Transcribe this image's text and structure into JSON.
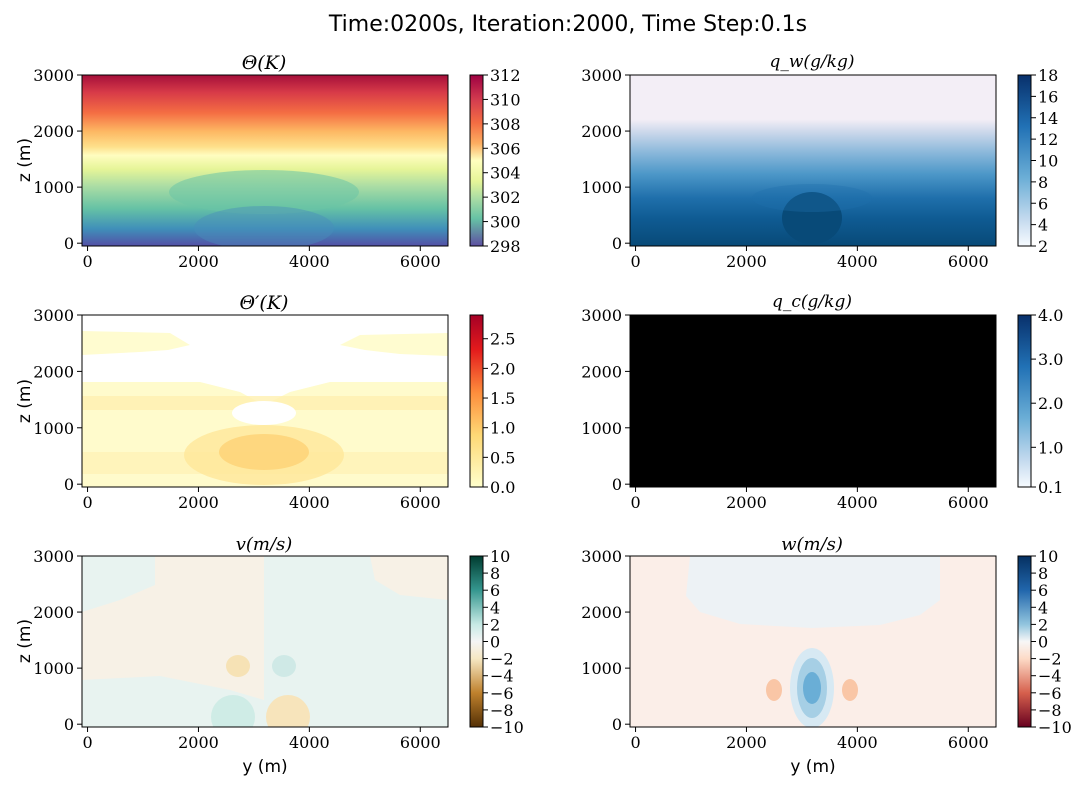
{
  "figure": {
    "suptitle": "Time:0200s, Iteration:2000, Time Step:0.1s"
  },
  "chart_data": [
    {
      "type": "heatmap",
      "title": "Θ(K)",
      "xlabel": "",
      "ylabel": "z (m)",
      "xlim": [
        0,
        6400
      ],
      "ylim": [
        0,
        3000
      ],
      "xticks": [
        "0",
        "2000",
        "4000",
        "6000"
      ],
      "yticks": [
        "0",
        "1000",
        "2000",
        "3000"
      ],
      "colorbar": {
        "ticks": [
          "298",
          "300",
          "302",
          "304",
          "306",
          "308",
          "310",
          "312"
        ],
        "range": [
          298,
          312
        ],
        "colormap": "Spectral_r"
      },
      "field": "Potential temperature stratified from 298 K at surface to 312 K at 3000 m, with cool dome near y=3200 m",
      "plot_xlim": [
        -100,
        6500
      ],
      "plot_ylim": [
        -50,
        3000
      ]
    },
    {
      "type": "heatmap",
      "title": "q_w(g/kg)",
      "xlabel": "",
      "ylabel": "",
      "xlim": [
        0,
        6400
      ],
      "ylim": [
        0,
        3000
      ],
      "xticks": [
        "0",
        "2000",
        "4000",
        "6000"
      ],
      "yticks": [
        "0",
        "1000",
        "2000",
        "3000"
      ],
      "colorbar": {
        "ticks": [
          "2",
          "4",
          "6",
          "8",
          "10",
          "12",
          "14",
          "16",
          "18"
        ],
        "range": [
          2,
          18
        ],
        "colormap": "Blues"
      },
      "field": "Water vapor mixing ratio decreasing with height, moist bulge near y=3200 m",
      "plot_xlim": [
        -100,
        6500
      ],
      "plot_ylim": [
        -50,
        3000
      ]
    },
    {
      "type": "heatmap",
      "title": "Θ′(K)",
      "xlabel": "",
      "ylabel": "z (m)",
      "xlim": [
        0,
        6400
      ],
      "ylim": [
        0,
        3000
      ],
      "xticks": [
        "0",
        "2000",
        "4000",
        "6000"
      ],
      "yticks": [
        "0",
        "1000",
        "2000",
        "3000"
      ],
      "colorbar": {
        "ticks": [
          "0.0",
          "0.5",
          "1.0",
          "1.5",
          "2.0",
          "2.5"
        ],
        "range": [
          0,
          2.9
        ],
        "colormap": "YlOrRd"
      },
      "field": "Potential temperature perturbation, small positive values with maximum near y=3200 m, z=600 m",
      "plot_xlim": [
        -100,
        6500
      ],
      "plot_ylim": [
        -50,
        3000
      ]
    },
    {
      "type": "heatmap",
      "title": "q_c(g/kg)",
      "xlabel": "",
      "ylabel": "",
      "xlim": [
        0,
        6400
      ],
      "ylim": [
        0,
        3000
      ],
      "xticks": [
        "0",
        "2000",
        "4000",
        "6000"
      ],
      "yticks": [
        "0",
        "1000",
        "2000",
        "3000"
      ],
      "colorbar": {
        "ticks": [
          "0.1",
          "1.0",
          "2.0",
          "3.0",
          "4.0"
        ],
        "range": [
          0.1,
          4.0
        ],
        "colormap": "Blues"
      },
      "field": "Cloud water mixing ratio, entire domain rendered black",
      "plot_xlim": [
        -100,
        6500
      ],
      "plot_ylim": [
        -50,
        3000
      ]
    },
    {
      "type": "heatmap",
      "title": "v(m/s)",
      "xlabel": "y (m)",
      "ylabel": "z (m)",
      "xlim": [
        0,
        6400
      ],
      "ylim": [
        0,
        3000
      ],
      "xticks": [
        "0",
        "2000",
        "4000",
        "6000"
      ],
      "yticks": [
        "0",
        "1000",
        "2000",
        "3000"
      ],
      "colorbar": {
        "ticks": [
          "10",
          "8",
          "6",
          "4",
          "2",
          "0",
          "−2",
          "−4",
          "−6",
          "−8",
          "−10"
        ],
        "range": [
          -10,
          10
        ],
        "colormap": "BrBG"
      },
      "field": "Horizontal wind, weak values near zero with small lobes around y=3200 m",
      "plot_xlim": [
        -100,
        6500
      ],
      "plot_ylim": [
        -50,
        3000
      ]
    },
    {
      "type": "heatmap",
      "title": "w(m/s)",
      "xlabel": "y (m)",
      "ylabel": "",
      "xlim": [
        0,
        6400
      ],
      "ylim": [
        0,
        3000
      ],
      "xticks": [
        "0",
        "2000",
        "4000",
        "6000"
      ],
      "yticks": [
        "0",
        "1000",
        "2000",
        "3000"
      ],
      "colorbar": {
        "ticks": [
          "10",
          "8",
          "6",
          "4",
          "2",
          "0",
          "−2",
          "−4",
          "−6",
          "−8",
          "−10"
        ],
        "range": [
          -10,
          10
        ],
        "colormap": "RdBu"
      },
      "field": "Vertical velocity, updraft column near y=3200 m, z=700 m flanked by weak downdrafts",
      "plot_xlim": [
        -100,
        6500
      ],
      "plot_ylim": [
        -50,
        3000
      ]
    }
  ]
}
